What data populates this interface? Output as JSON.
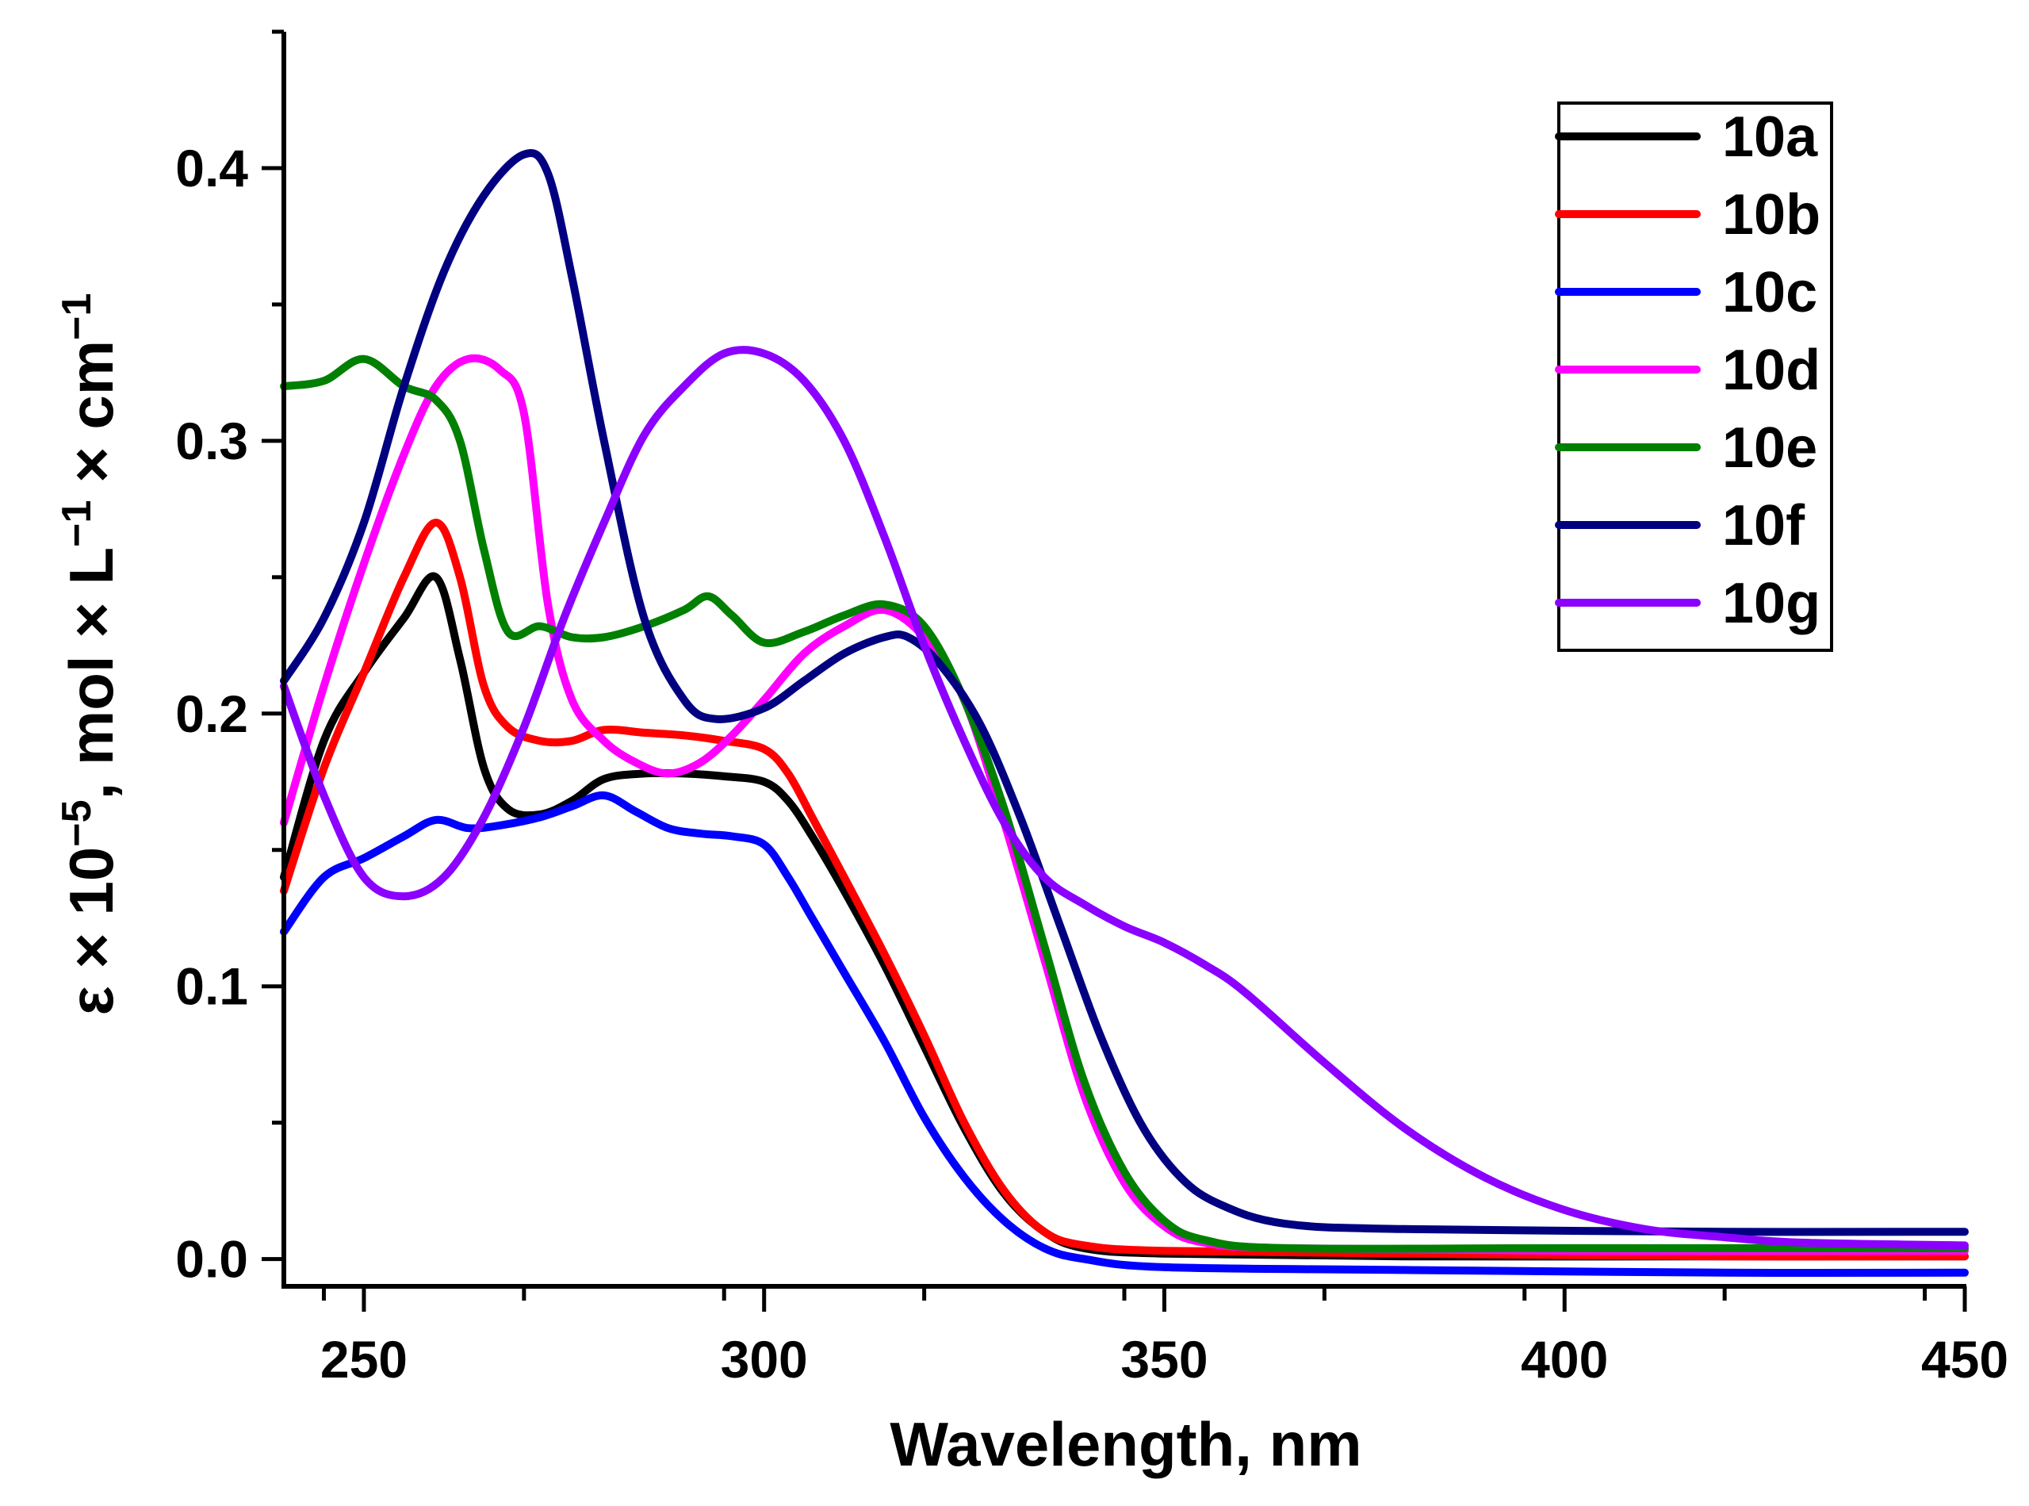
{
  "chart_data": {
    "type": "line",
    "title": "",
    "xlabel": "Wavelength, nm",
    "ylabel": {
      "p1": "ε × 10",
      "s1": "−5",
      "p2": ", mol × L",
      "s2": "−1",
      "p3": " × cm",
      "s3": "−1"
    },
    "xlim": [
      240,
      450
    ],
    "ylim": [
      -0.01,
      0.45
    ],
    "x_ticks": [
      250,
      300,
      350,
      400,
      450
    ],
    "x_tick_labels": [
      "250",
      "300",
      "350",
      "400",
      "450"
    ],
    "y_ticks": [
      0.0,
      0.1,
      0.2,
      0.3,
      0.4
    ],
    "y_tick_labels": [
      "0.0",
      "0.1",
      "0.2",
      "0.3",
      "0.4"
    ],
    "legend_position": "top-right",
    "series": [
      {
        "name": "10a",
        "color": "#000000",
        "points": [
          [
            240,
            0.14
          ],
          [
            245,
            0.19
          ],
          [
            250,
            0.215
          ],
          [
            255,
            0.235
          ],
          [
            259,
            0.25
          ],
          [
            262,
            0.22
          ],
          [
            265,
            0.18
          ],
          [
            268,
            0.165
          ],
          [
            272,
            0.163
          ],
          [
            276,
            0.168
          ],
          [
            280,
            0.176
          ],
          [
            285,
            0.178
          ],
          [
            290,
            0.178
          ],
          [
            295,
            0.177
          ],
          [
            300,
            0.175
          ],
          [
            303,
            0.168
          ],
          [
            306,
            0.155
          ],
          [
            310,
            0.135
          ],
          [
            315,
            0.108
          ],
          [
            320,
            0.078
          ],
          [
            325,
            0.048
          ],
          [
            330,
            0.024
          ],
          [
            335,
            0.01
          ],
          [
            340,
            0.004
          ],
          [
            350,
            0.002
          ],
          [
            380,
            0.001
          ],
          [
            420,
            0.001
          ],
          [
            450,
            0.001
          ]
        ]
      },
      {
        "name": "10b",
        "color": "#ff0000",
        "points": [
          [
            240,
            0.135
          ],
          [
            245,
            0.18
          ],
          [
            250,
            0.215
          ],
          [
            255,
            0.25
          ],
          [
            259,
            0.27
          ],
          [
            262,
            0.25
          ],
          [
            265,
            0.21
          ],
          [
            268,
            0.195
          ],
          [
            272,
            0.19
          ],
          [
            276,
            0.19
          ],
          [
            280,
            0.194
          ],
          [
            285,
            0.193
          ],
          [
            290,
            0.192
          ],
          [
            295,
            0.19
          ],
          [
            300,
            0.187
          ],
          [
            303,
            0.178
          ],
          [
            306,
            0.162
          ],
          [
            310,
            0.14
          ],
          [
            315,
            0.112
          ],
          [
            320,
            0.082
          ],
          [
            325,
            0.05
          ],
          [
            330,
            0.025
          ],
          [
            335,
            0.01
          ],
          [
            340,
            0.005
          ],
          [
            350,
            0.003
          ],
          [
            380,
            0.002
          ],
          [
            420,
            0.001
          ],
          [
            450,
            0.001
          ]
        ]
      },
      {
        "name": "10c",
        "color": "#0000ff",
        "points": [
          [
            240,
            0.12
          ],
          [
            245,
            0.14
          ],
          [
            250,
            0.147
          ],
          [
            255,
            0.155
          ],
          [
            259,
            0.161
          ],
          [
            263,
            0.158
          ],
          [
            267,
            0.159
          ],
          [
            272,
            0.162
          ],
          [
            276,
            0.166
          ],
          [
            280,
            0.17
          ],
          [
            284,
            0.164
          ],
          [
            288,
            0.158
          ],
          [
            292,
            0.156
          ],
          [
            296,
            0.155
          ],
          [
            300,
            0.152
          ],
          [
            303,
            0.14
          ],
          [
            306,
            0.125
          ],
          [
            310,
            0.105
          ],
          [
            315,
            0.08
          ],
          [
            320,
            0.052
          ],
          [
            325,
            0.03
          ],
          [
            330,
            0.014
          ],
          [
            335,
            0.004
          ],
          [
            340,
            0.0
          ],
          [
            350,
            -0.003
          ],
          [
            380,
            -0.004
          ],
          [
            420,
            -0.005
          ],
          [
            450,
            -0.005
          ]
        ]
      },
      {
        "name": "10d",
        "color": "#ff00ff",
        "points": [
          [
            240,
            0.16
          ],
          [
            245,
            0.21
          ],
          [
            250,
            0.255
          ],
          [
            255,
            0.295
          ],
          [
            259,
            0.32
          ],
          [
            263,
            0.33
          ],
          [
            267,
            0.326
          ],
          [
            270,
            0.31
          ],
          [
            273,
            0.24
          ],
          [
            276,
            0.205
          ],
          [
            280,
            0.19
          ],
          [
            284,
            0.182
          ],
          [
            288,
            0.178
          ],
          [
            292,
            0.182
          ],
          [
            296,
            0.192
          ],
          [
            300,
            0.205
          ],
          [
            305,
            0.222
          ],
          [
            310,
            0.232
          ],
          [
            315,
            0.238
          ],
          [
            320,
            0.228
          ],
          [
            325,
            0.205
          ],
          [
            330,
            0.16
          ],
          [
            335,
            0.11
          ],
          [
            340,
            0.06
          ],
          [
            345,
            0.028
          ],
          [
            350,
            0.012
          ],
          [
            355,
            0.006
          ],
          [
            365,
            0.004
          ],
          [
            400,
            0.003
          ],
          [
            450,
            0.003
          ]
        ]
      },
      {
        "name": "10e",
        "color": "#008000",
        "points": [
          [
            240,
            0.32
          ],
          [
            245,
            0.322
          ],
          [
            250,
            0.33
          ],
          [
            255,
            0.32
          ],
          [
            259,
            0.315
          ],
          [
            262,
            0.3
          ],
          [
            265,
            0.26
          ],
          [
            268,
            0.23
          ],
          [
            272,
            0.232
          ],
          [
            276,
            0.228
          ],
          [
            280,
            0.228
          ],
          [
            285,
            0.232
          ],
          [
            290,
            0.238
          ],
          [
            293,
            0.243
          ],
          [
            296,
            0.236
          ],
          [
            300,
            0.226
          ],
          [
            305,
            0.23
          ],
          [
            310,
            0.236
          ],
          [
            315,
            0.24
          ],
          [
            320,
            0.232
          ],
          [
            325,
            0.205
          ],
          [
            330,
            0.165
          ],
          [
            335,
            0.115
          ],
          [
            340,
            0.065
          ],
          [
            345,
            0.032
          ],
          [
            350,
            0.014
          ],
          [
            355,
            0.007
          ],
          [
            365,
            0.004
          ],
          [
            400,
            0.004
          ],
          [
            450,
            0.004
          ]
        ]
      },
      {
        "name": "10f",
        "color": "#000080",
        "points": [
          [
            240,
            0.212
          ],
          [
            245,
            0.235
          ],
          [
            250,
            0.27
          ],
          [
            255,
            0.32
          ],
          [
            260,
            0.362
          ],
          [
            265,
            0.39
          ],
          [
            270,
            0.405
          ],
          [
            273,
            0.398
          ],
          [
            276,
            0.36
          ],
          [
            280,
            0.3
          ],
          [
            285,
            0.235
          ],
          [
            290,
            0.205
          ],
          [
            294,
            0.198
          ],
          [
            300,
            0.202
          ],
          [
            305,
            0.212
          ],
          [
            310,
            0.222
          ],
          [
            315,
            0.228
          ],
          [
            318,
            0.228
          ],
          [
            322,
            0.218
          ],
          [
            327,
            0.196
          ],
          [
            332,
            0.162
          ],
          [
            337,
            0.122
          ],
          [
            342,
            0.082
          ],
          [
            347,
            0.05
          ],
          [
            352,
            0.03
          ],
          [
            357,
            0.02
          ],
          [
            365,
            0.013
          ],
          [
            380,
            0.011
          ],
          [
            420,
            0.01
          ],
          [
            450,
            0.01
          ]
        ]
      },
      {
        "name": "10g",
        "color": "#8b00ff",
        "points": [
          [
            240,
            0.21
          ],
          [
            245,
            0.17
          ],
          [
            250,
            0.14
          ],
          [
            255,
            0.133
          ],
          [
            260,
            0.14
          ],
          [
            265,
            0.162
          ],
          [
            270,
            0.195
          ],
          [
            275,
            0.235
          ],
          [
            280,
            0.27
          ],
          [
            285,
            0.302
          ],
          [
            290,
            0.32
          ],
          [
            295,
            0.332
          ],
          [
            300,
            0.332
          ],
          [
            305,
            0.322
          ],
          [
            310,
            0.3
          ],
          [
            315,
            0.265
          ],
          [
            320,
            0.225
          ],
          [
            325,
            0.19
          ],
          [
            330,
            0.16
          ],
          [
            335,
            0.14
          ],
          [
            340,
            0.13
          ],
          [
            345,
            0.122
          ],
          [
            350,
            0.116
          ],
          [
            355,
            0.108
          ],
          [
            360,
            0.098
          ],
          [
            370,
            0.072
          ],
          [
            380,
            0.048
          ],
          [
            390,
            0.03
          ],
          [
            400,
            0.018
          ],
          [
            410,
            0.011
          ],
          [
            420,
            0.008
          ],
          [
            430,
            0.006
          ],
          [
            450,
            0.005
          ]
        ]
      }
    ]
  }
}
